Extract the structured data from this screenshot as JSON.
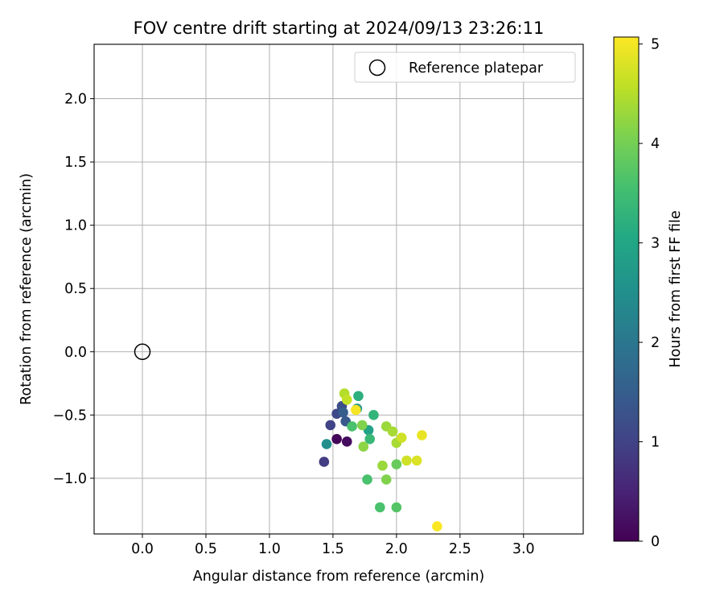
{
  "chart_data": {
    "type": "scatter",
    "title": "FOV centre drift starting at 2024/09/13 23:26:11",
    "xlabel": "Angular distance from reference (arcmin)",
    "ylabel": "Rotation from reference (arcmin)",
    "xlim": [
      -0.38,
      3.47
    ],
    "ylim": [
      -1.44,
      2.43
    ],
    "xticks": [
      0.0,
      0.5,
      1.0,
      1.5,
      2.0,
      2.5,
      3.0
    ],
    "yticks": [
      -1.0,
      -0.5,
      0.0,
      0.5,
      1.0,
      1.5,
      2.0
    ],
    "xtick_labels": [
      "0.0",
      "0.5",
      "1.0",
      "1.5",
      "2.0",
      "2.5",
      "3.0"
    ],
    "ytick_labels": [
      "−1.0",
      "−0.5",
      "0.0",
      "0.5",
      "1.0",
      "1.5",
      "2.0"
    ],
    "grid": true,
    "legend": {
      "position": "top-right",
      "entries": [
        "Reference platepar"
      ]
    },
    "reference_point": {
      "name": "Reference platepar",
      "x": 0.0,
      "y": 0.0,
      "marker": "open-circle"
    },
    "colorbar": {
      "label": "Hours from first FF file",
      "colormap": "viridis",
      "range": [
        0,
        5.07
      ],
      "ticks": [
        0,
        1,
        2,
        3,
        4,
        5
      ],
      "tick_labels": [
        "0",
        "1",
        "2",
        "3",
        "4",
        "5"
      ]
    },
    "points": [
      {
        "x": 1.53,
        "y": -0.69,
        "c": 0.05
      },
      {
        "x": 1.61,
        "y": -0.71,
        "c": 0.15
      },
      {
        "x": 1.43,
        "y": -0.87,
        "c": 0.9
      },
      {
        "x": 1.48,
        "y": -0.58,
        "c": 1.0
      },
      {
        "x": 1.53,
        "y": -0.49,
        "c": 1.1
      },
      {
        "x": 1.57,
        "y": -0.43,
        "c": 1.2
      },
      {
        "x": 1.6,
        "y": -0.55,
        "c": 1.4
      },
      {
        "x": 1.58,
        "y": -0.48,
        "c": 1.5
      },
      {
        "x": 1.45,
        "y": -0.73,
        "c": 2.5
      },
      {
        "x": 1.69,
        "y": -0.45,
        "c": 2.7
      },
      {
        "x": 1.78,
        "y": -0.62,
        "c": 2.9
      },
      {
        "x": 1.7,
        "y": -0.35,
        "c": 3.2
      },
      {
        "x": 1.82,
        "y": -0.5,
        "c": 3.3
      },
      {
        "x": 1.79,
        "y": -0.69,
        "c": 3.4
      },
      {
        "x": 1.65,
        "y": -0.59,
        "c": 3.6
      },
      {
        "x": 1.77,
        "y": -1.01,
        "c": 3.6
      },
      {
        "x": 1.87,
        "y": -1.23,
        "c": 3.6
      },
      {
        "x": 2.0,
        "y": -1.23,
        "c": 3.7
      },
      {
        "x": 2.0,
        "y": -0.89,
        "c": 3.9
      },
      {
        "x": 1.92,
        "y": -1.01,
        "c": 4.1
      },
      {
        "x": 1.73,
        "y": -0.58,
        "c": 4.1
      },
      {
        "x": 1.74,
        "y": -0.75,
        "c": 4.2
      },
      {
        "x": 1.89,
        "y": -0.9,
        "c": 4.3
      },
      {
        "x": 1.92,
        "y": -0.59,
        "c": 4.3
      },
      {
        "x": 1.97,
        "y": -0.63,
        "c": 4.4
      },
      {
        "x": 2.0,
        "y": -0.72,
        "c": 4.4
      },
      {
        "x": 1.59,
        "y": -0.33,
        "c": 4.5
      },
      {
        "x": 1.61,
        "y": -0.38,
        "c": 4.6
      },
      {
        "x": 2.04,
        "y": -0.68,
        "c": 4.7
      },
      {
        "x": 2.08,
        "y": -0.86,
        "c": 4.7
      },
      {
        "x": 2.16,
        "y": -0.86,
        "c": 4.8
      },
      {
        "x": 2.2,
        "y": -0.66,
        "c": 4.9
      },
      {
        "x": 1.68,
        "y": -0.46,
        "c": 5.0
      },
      {
        "x": 2.32,
        "y": -1.38,
        "c": 5.05
      }
    ]
  }
}
